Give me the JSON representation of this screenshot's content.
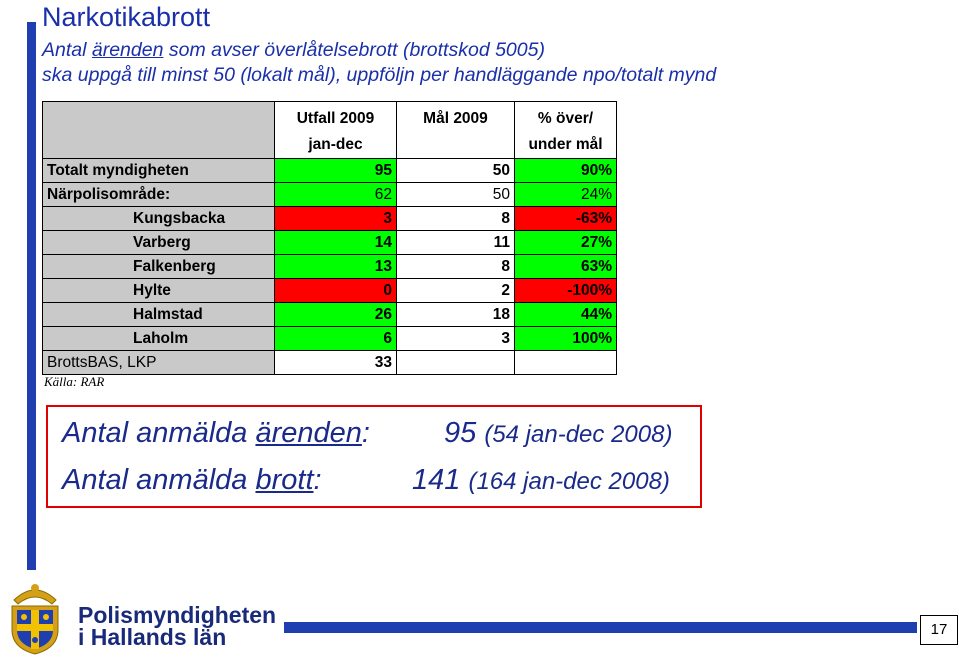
{
  "title": "Narkotikabrott",
  "subtitle": {
    "line1_before": "Antal ",
    "line1_underlined": "ärenden",
    "line1_after": " som avser överlåtelsebrott (brottskod 5005)",
    "line2": "ska uppgå till minst 50 (lokalt mål), uppföljn per handläggande npo/totalt mynd"
  },
  "table": {
    "headers": {
      "col1_line1": "Utfall 2009",
      "col1_line2": "jan-dec",
      "col2": "Mål 2009",
      "col3_line1": "% över/",
      "col3_line2": "under mål"
    },
    "rows": [
      {
        "label": "Totalt myndigheten",
        "utfall": "95",
        "mal": "50",
        "pct": "90%"
      },
      {
        "label": "Närpolisområde:",
        "utfall": "62",
        "mal": "50",
        "pct": "24%"
      },
      {
        "label": "Kungsbacka",
        "utfall": "3",
        "mal": "8",
        "pct": "-63%"
      },
      {
        "label": "Varberg",
        "utfall": "14",
        "mal": "11",
        "pct": "27%"
      },
      {
        "label": "Falkenberg",
        "utfall": "13",
        "mal": "8",
        "pct": "63%"
      },
      {
        "label": "Hylte",
        "utfall": "0",
        "mal": "2",
        "pct": "-100%"
      },
      {
        "label": "Halmstad",
        "utfall": "26",
        "mal": "18",
        "pct": "44%"
      },
      {
        "label": "Laholm",
        "utfall": "6",
        "mal": "3",
        "pct": "100%"
      },
      {
        "label": "BrottsBAS, LKP",
        "utfall": "33",
        "mal": "",
        "pct": ""
      }
    ],
    "colors": {
      "positive": "#00ff00",
      "negative": "#ff0000",
      "label_bg": "#c9c9c9"
    }
  },
  "source": "Källa: RAR",
  "summary": {
    "row1_label_before": "Antal anmälda ",
    "row1_label_underlined": "ärenden",
    "row1_label_after": ":",
    "row1_value": "95",
    "row1_paren": "(54 jan-dec 2008)",
    "row2_label_before": "Antal anmälda ",
    "row2_label_underlined": "brott",
    "row2_label_after": ":",
    "row2_value": "141",
    "row2_paren": "(164 jan-dec 2008)"
  },
  "footer": {
    "org_line1": "Polismyndigheten",
    "org_line2": "i Hallands län",
    "page_number": "17",
    "logo_icon": "police-coat-of-arms-icon",
    "brand_color": "#1f3fb0"
  }
}
